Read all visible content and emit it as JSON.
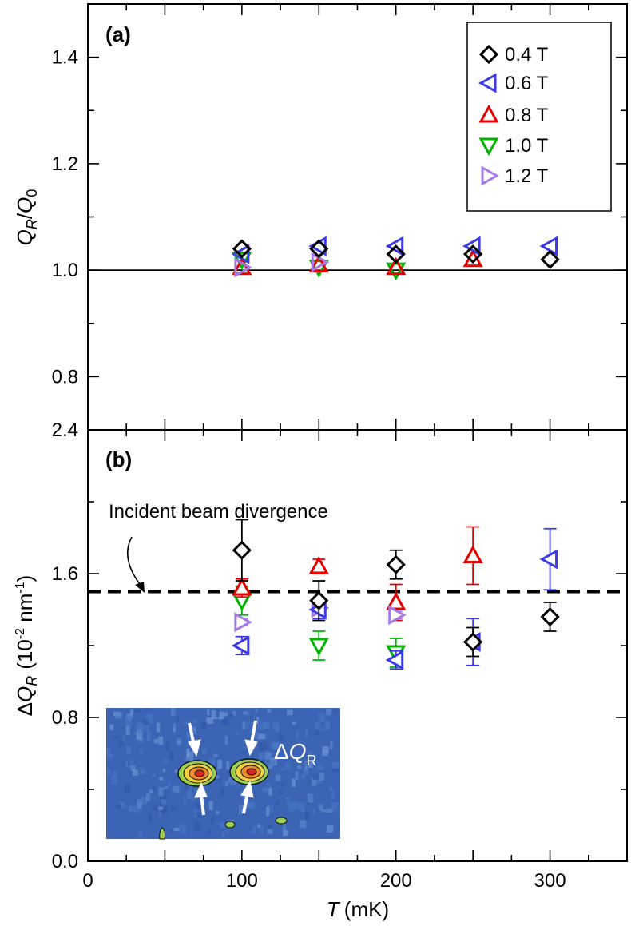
{
  "chart_data": [
    {
      "panel": "(a)",
      "type": "scatter",
      "title": "",
      "xlabel": "T",
      "xlabel_unit": "(mK)",
      "ylabel": "Q_R/Q_0",
      "ylabel_parts": {
        "main": "Q",
        "sub1": "R",
        "slash": "/",
        "main2": "Q",
        "sub2": "0"
      },
      "xlim": [
        0,
        350
      ],
      "ylim": [
        0.7,
        1.5
      ],
      "yticks": [
        0.8,
        1.0,
        1.2,
        1.4
      ],
      "ytick_labels": [
        "0.8",
        "1.0",
        "1.2",
        "1.4"
      ],
      "reference_line": 1.0,
      "legend_position": "top-right",
      "series": [
        {
          "name": "0.4 T",
          "marker": "diamond",
          "color": "#000000",
          "x": [
            100,
            150,
            200,
            250,
            300
          ],
          "y": [
            1.04,
            1.04,
            1.03,
            1.03,
            1.02
          ]
        },
        {
          "name": "0.6 T",
          "marker": "triangle-left",
          "color": "#3a3ae6",
          "x": [
            100,
            150,
            200,
            250,
            300
          ],
          "y": [
            1.03,
            1.045,
            1.045,
            1.045,
            1.045
          ]
        },
        {
          "name": "0.8 T",
          "marker": "triangle-up",
          "color": "#e60000",
          "x": [
            100,
            150,
            200,
            250
          ],
          "y": [
            1.005,
            1.01,
            1.005,
            1.02
          ]
        },
        {
          "name": "1.0 T",
          "marker": "triangle-down",
          "color": "#00b400",
          "x": [
            100,
            150,
            200
          ],
          "y": [
            1.02,
            1.005,
            1.0
          ]
        },
        {
          "name": "1.2 T",
          "marker": "triangle-right",
          "color": "#a678e6",
          "x": [
            100,
            150
          ],
          "y": [
            1.005,
            1.015
          ]
        }
      ]
    },
    {
      "panel": "(b)",
      "type": "scatter",
      "title": "",
      "xlabel": "T",
      "xlabel_unit": "(mK)",
      "ylabel": "ΔQ_R (10^-2 nm^-1)",
      "ylabel_parts": {
        "delta": "Δ",
        "main": "Q",
        "sub": "R",
        "unit_open": "(10",
        "exp1": "-2",
        "unit_mid": " nm",
        "exp2": "-1",
        "unit_close": ")"
      },
      "xlim": [
        0,
        350
      ],
      "ylim": [
        0.0,
        2.4
      ],
      "xticks": [
        0,
        100,
        200,
        300
      ],
      "xtick_labels": [
        "0",
        "100",
        "200",
        "300"
      ],
      "yticks": [
        0.0,
        0.8,
        1.6,
        2.4
      ],
      "ytick_labels": [
        "0.0",
        "0.8",
        "1.6",
        "2.4"
      ],
      "reference_line": {
        "y": 1.5,
        "label": "Incident beam divergence",
        "style": "dashed"
      },
      "series": [
        {
          "name": "0.4 T",
          "marker": "diamond",
          "color": "#000000",
          "x": [
            100,
            150,
            200,
            250,
            300
          ],
          "y": [
            1.73,
            1.45,
            1.65,
            1.22,
            1.36
          ],
          "err": [
            0.17,
            0.11,
            0.08,
            0.08,
            0.08
          ]
        },
        {
          "name": "0.6 T",
          "marker": "triangle-left",
          "color": "#3a3ae6",
          "x": [
            100,
            150,
            200,
            250,
            300
          ],
          "y": [
            1.2,
            1.4,
            1.12,
            1.22,
            1.68
          ],
          "err": [
            0.05,
            0.05,
            0.05,
            0.13,
            0.17
          ]
        },
        {
          "name": "0.8 T",
          "marker": "triangle-up",
          "color": "#e60000",
          "x": [
            100,
            150,
            200,
            250
          ],
          "y": [
            1.52,
            1.64,
            1.44,
            1.7
          ],
          "err": [
            0.05,
            0.04,
            0.1,
            0.16
          ]
        },
        {
          "name": "1.0 T",
          "marker": "triangle-down",
          "color": "#00b400",
          "x": [
            100,
            150,
            200
          ],
          "y": [
            1.45,
            1.2,
            1.16
          ],
          "err": [
            0.08,
            0.08,
            0.08
          ]
        },
        {
          "name": "1.2 T",
          "marker": "triangle-right",
          "color": "#a678e6",
          "x": [
            100,
            150,
            200
          ],
          "y": [
            1.33,
            1.41,
            1.37
          ],
          "err": [
            0.02,
            0.02,
            0.02
          ]
        }
      ],
      "inset": {
        "label_delta": "Δ",
        "label_main": "Q",
        "label_sub": "R"
      }
    }
  ],
  "colors": {
    "inset_bg": "#3b64b4",
    "inset_bg2": "#4a76c2"
  }
}
